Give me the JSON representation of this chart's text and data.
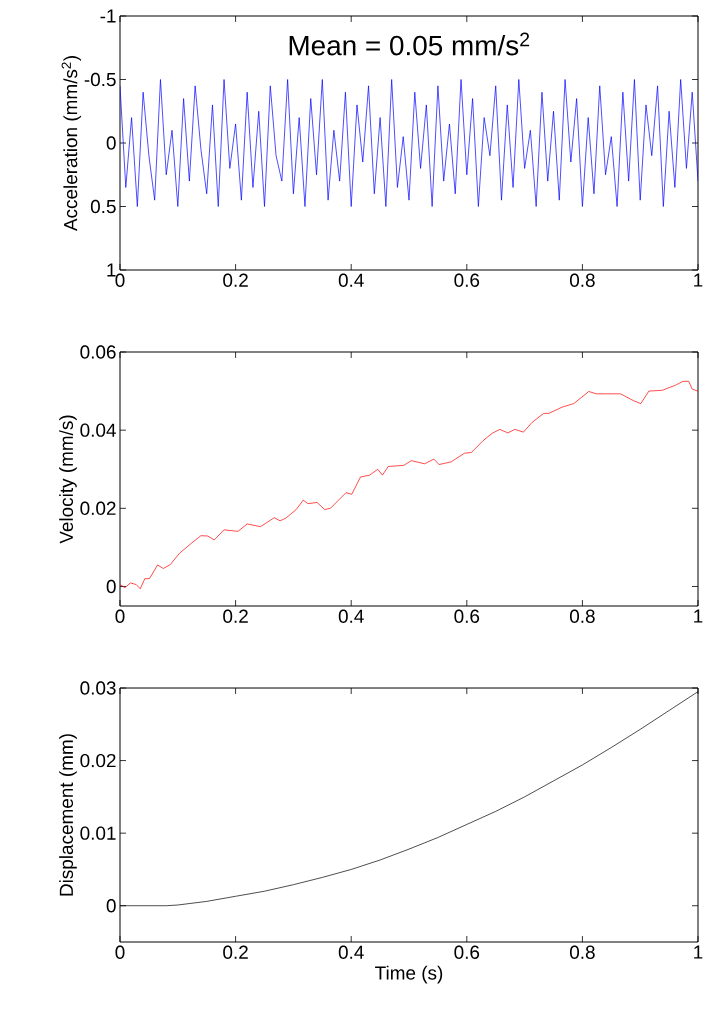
{
  "chart_data": [
    {
      "type": "line",
      "ylabel": "Acceleration (mm/s$^{2}$)",
      "annotations": [
        "Mean = 0.05 mm/s$^{2}$"
      ],
      "x": [
        0,
        0.01,
        0.02,
        0.03,
        0.04,
        0.05,
        0.06,
        0.07,
        0.08,
        0.09,
        0.1,
        0.11,
        0.12,
        0.13,
        0.14,
        0.15,
        0.16,
        0.17,
        0.18,
        0.19,
        0.2,
        0.21,
        0.22,
        0.23,
        0.24,
        0.25,
        0.26,
        0.27,
        0.28,
        0.29,
        0.3,
        0.31,
        0.32,
        0.33,
        0.34,
        0.35,
        0.36,
        0.37,
        0.38,
        0.39,
        0.4,
        0.41,
        0.42,
        0.43,
        0.44,
        0.45,
        0.46,
        0.47,
        0.48,
        0.49,
        0.5,
        0.51,
        0.52,
        0.53,
        0.54,
        0.55,
        0.56,
        0.57,
        0.58,
        0.59,
        0.6,
        0.61,
        0.62,
        0.63,
        0.64,
        0.65,
        0.66,
        0.67,
        0.68,
        0.69,
        0.7,
        0.71,
        0.72,
        0.73,
        0.74,
        0.75,
        0.76,
        0.77,
        0.78,
        0.79,
        0.8,
        0.81,
        0.82,
        0.83,
        0.84,
        0.85,
        0.86,
        0.87,
        0.88,
        0.89,
        0.9,
        0.91,
        0.92,
        0.93,
        0.94,
        0.95,
        0.96,
        0.97,
        0.98,
        0.99,
        1
      ],
      "series": [
        {
          "color": "#0000ff",
          "values": [
            -0.45,
            0.35,
            -0.2,
            0.5,
            -0.4,
            0.1,
            0.45,
            -0.5,
            0.25,
            -0.1,
            0.5,
            -0.35,
            0.3,
            -0.45,
            0.05,
            0.4,
            -0.3,
            0.5,
            -0.5,
            0.2,
            -0.15,
            0.45,
            -0.4,
            0.35,
            -0.25,
            0.5,
            -0.45,
            0.1,
            0.3,
            -0.5,
            0.4,
            -0.2,
            0.5,
            -0.35,
            0.25,
            -0.5,
            0.45,
            -0.1,
            0.3,
            -0.4,
            0.5,
            -0.3,
            0.15,
            -0.45,
            0.4,
            -0.2,
            0.5,
            -0.5,
            0.35,
            -0.05,
            0.45,
            -0.4,
            0.2,
            -0.3,
            0.5,
            -0.45,
            0.3,
            -0.15,
            0.4,
            -0.5,
            0.25,
            -0.35,
            0.5,
            -0.2,
            0.1,
            -0.45,
            0.45,
            -0.3,
            0.35,
            -0.5,
            0.2,
            -0.1,
            0.5,
            -0.4,
            0.3,
            -0.25,
            0.45,
            -0.5,
            0.15,
            -0.35,
            0.5,
            -0.2,
            0.4,
            -0.45,
            0.25,
            -0.05,
            0.5,
            -0.4,
            0.3,
            -0.5,
            0.45,
            -0.3,
            0.1,
            -0.45,
            0.5,
            -0.25,
            0.35,
            -0.5,
            0.2,
            -0.4,
            0.3
          ]
        }
      ],
      "xlim": [
        0,
        1
      ],
      "ylim": [
        1,
        -1
      ],
      "xticks": [
        0,
        0.2,
        0.4,
        0.6,
        0.8,
        1
      ],
      "yticks": [
        -1,
        -0.5,
        0,
        0.5,
        1
      ]
    },
    {
      "type": "line",
      "ylabel": "Velocity (mm/s)",
      "x": [
        0,
        0.0085,
        0.018,
        0.028,
        0.035,
        0.043,
        0.051,
        0.065,
        0.075,
        0.087,
        0.103,
        0.123,
        0.14,
        0.152,
        0.163,
        0.18,
        0.204,
        0.22,
        0.243,
        0.267,
        0.277,
        0.287,
        0.305,
        0.317,
        0.325,
        0.341,
        0.354,
        0.364,
        0.391,
        0.401,
        0.416,
        0.432,
        0.446,
        0.454,
        0.464,
        0.491,
        0.504,
        0.527,
        0.543,
        0.552,
        0.573,
        0.596,
        0.608,
        0.628,
        0.644,
        0.657,
        0.671,
        0.683,
        0.698,
        0.713,
        0.733,
        0.742,
        0.765,
        0.785,
        0.811,
        0.824,
        0.866,
        0.889,
        0.901,
        0.915,
        0.938,
        0.961,
        0.974,
        0.984,
        0.99,
        1
      ],
      "series": [
        {
          "color": "#ff0000",
          "values": [
            0.0005,
            -0.0003,
            0.0009,
            0.0005,
            -0.0006,
            0.002,
            0.002,
            0.0055,
            0.0046,
            0.0056,
            0.0085,
            0.011,
            0.013,
            0.0129,
            0.0119,
            0.0145,
            0.0141,
            0.016,
            0.0153,
            0.0176,
            0.0168,
            0.0175,
            0.0197,
            0.0221,
            0.0212,
            0.0215,
            0.0197,
            0.02,
            0.024,
            0.0236,
            0.028,
            0.0285,
            0.03,
            0.0285,
            0.0307,
            0.031,
            0.0322,
            0.0314,
            0.0326,
            0.0312,
            0.0319,
            0.0341,
            0.0343,
            0.0373,
            0.0392,
            0.0402,
            0.0393,
            0.0402,
            0.0395,
            0.042,
            0.0443,
            0.0443,
            0.0459,
            0.0468,
            0.0499,
            0.0493,
            0.0493,
            0.0475,
            0.0468,
            0.05,
            0.0502,
            0.0515,
            0.0525,
            0.0525,
            0.0505,
            0.05
          ]
        }
      ],
      "xlim": [
        0,
        1
      ],
      "ylim": [
        -0.005,
        0.06
      ],
      "xticks": [
        0,
        0.2,
        0.4,
        0.6,
        0.8,
        1
      ],
      "yticks": [
        0,
        0.02,
        0.04,
        0.06
      ]
    },
    {
      "type": "line",
      "xlabel": "Time (s)",
      "ylabel": "Displacement (mm)",
      "x": [
        0,
        0.05,
        0.08,
        0.1,
        0.15,
        0.2,
        0.25,
        0.3,
        0.35,
        0.4,
        0.45,
        0.5,
        0.55,
        0.6,
        0.65,
        0.7,
        0.75,
        0.8,
        0.85,
        0.9,
        0.95,
        1
      ],
      "series": [
        {
          "color": "#000000",
          "values": [
            0,
            0,
            0,
            0.0001,
            0.0006,
            0.0013,
            0.002,
            0.0029,
            0.0039,
            0.005,
            0.0063,
            0.0078,
            0.0094,
            0.0112,
            0.013,
            0.015,
            0.0172,
            0.0194,
            0.0218,
            0.0243,
            0.0269,
            0.0295
          ]
        }
      ],
      "xlim": [
        0,
        1
      ],
      "ylim": [
        -0.005,
        0.03
      ],
      "xticks": [
        0,
        0.2,
        0.4,
        0.6,
        0.8,
        1
      ],
      "yticks": [
        0,
        0.01,
        0.02,
        0.03
      ]
    }
  ]
}
